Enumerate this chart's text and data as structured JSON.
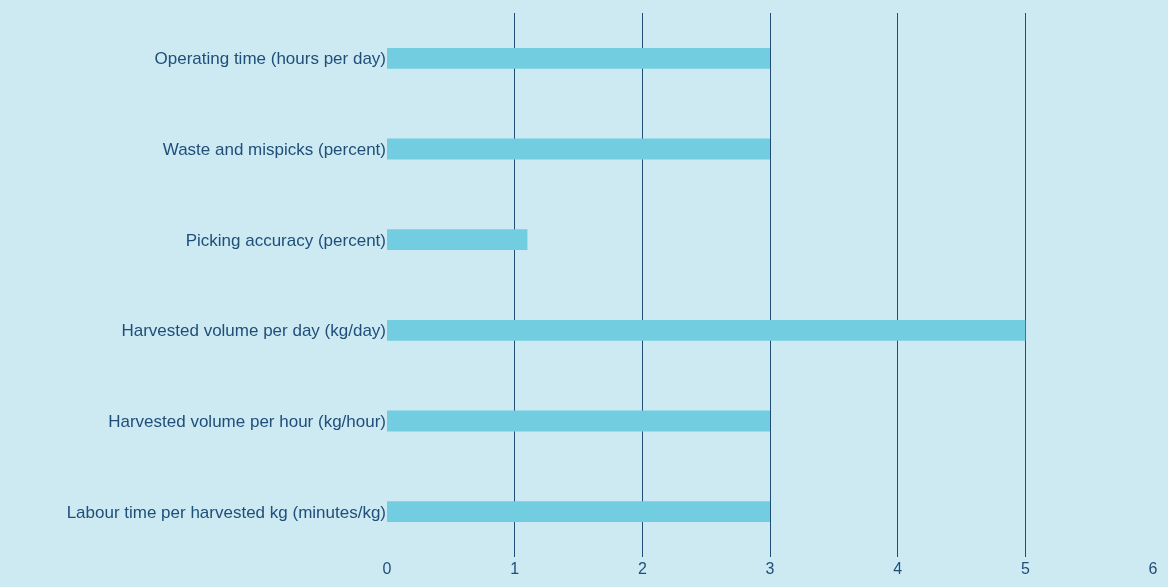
{
  "chart_data": {
    "type": "bar",
    "orientation": "horizontal",
    "categories": [
      "Operating time (hours per day)",
      "Waste and mispicks (percent)",
      "Picking accuracy (percent)",
      "Harvested volume per day (kg/day)",
      "Harvested volume per hour (kg/hour)",
      "Labour time per harvested kg (minutes/kg)"
    ],
    "values": [
      3,
      3,
      1.1,
      5,
      3,
      3
    ],
    "color": "#72cde0",
    "xlim": [
      0,
      6
    ],
    "xticks": [
      0,
      1,
      2,
      3,
      4,
      5,
      6
    ],
    "grid": "x",
    "legend": false
  }
}
